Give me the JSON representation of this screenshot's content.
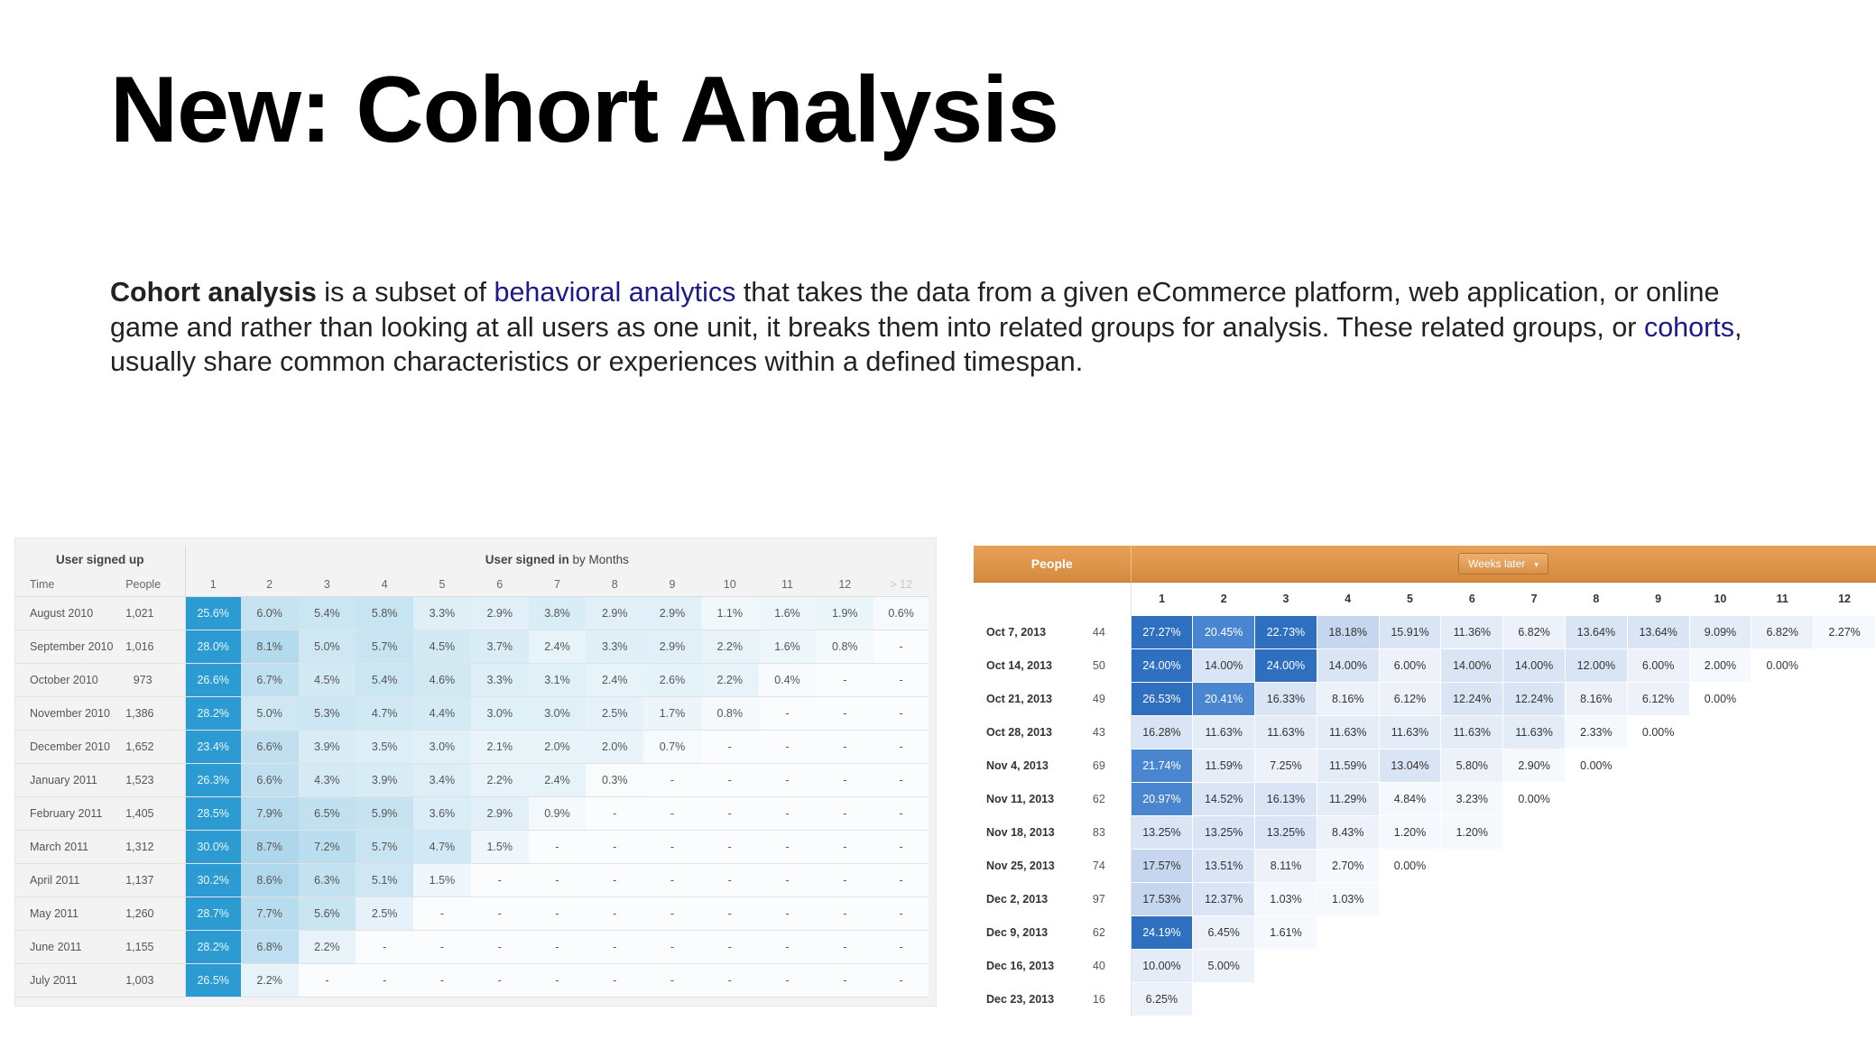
{
  "slide": {
    "title": "New: Cohort Analysis",
    "intro": {
      "term": "Cohort analysis",
      "part1": " is a subset of ",
      "link1": "behavioral analytics",
      "part2": " that takes the data from a given eCommerce platform, web application, or online game and rather than looking at all users as one unit, it breaks them into related groups for analysis. These related groups, or ",
      "link2": "cohorts",
      "part3": ", usually share common characteristics or experiences within a defined timespan."
    }
  },
  "left_table": {
    "header_left": "User signed up",
    "header_right_bold": "User signed in",
    "header_right_rest": " by Months",
    "col_time": "Time",
    "col_people": "People",
    "columns": [
      "1",
      "2",
      "3",
      "4",
      "5",
      "6",
      "7",
      "8",
      "9",
      "10",
      "11",
      "12",
      "> 12"
    ],
    "rows": [
      {
        "label": "August 2010",
        "people": "1,021",
        "values": [
          "25.6%",
          "6.0%",
          "5.4%",
          "5.8%",
          "3.3%",
          "2.9%",
          "3.8%",
          "2.9%",
          "2.9%",
          "1.1%",
          "1.6%",
          "1.9%",
          "0.6%"
        ]
      },
      {
        "label": "September 2010",
        "people": "1,016",
        "values": [
          "28.0%",
          "8.1%",
          "5.0%",
          "5.7%",
          "4.5%",
          "3.7%",
          "2.4%",
          "3.3%",
          "2.9%",
          "2.2%",
          "1.6%",
          "0.8%",
          "-"
        ]
      },
      {
        "label": "October 2010",
        "people": "973",
        "values": [
          "26.6%",
          "6.7%",
          "4.5%",
          "5.4%",
          "4.6%",
          "3.3%",
          "3.1%",
          "2.4%",
          "2.6%",
          "2.2%",
          "0.4%",
          "-",
          "-"
        ]
      },
      {
        "label": "November 2010",
        "people": "1,386",
        "values": [
          "28.2%",
          "5.0%",
          "5.3%",
          "4.7%",
          "4.4%",
          "3.0%",
          "3.0%",
          "2.5%",
          "1.7%",
          "0.8%",
          "-",
          "-",
          "-"
        ]
      },
      {
        "label": "December 2010",
        "people": "1,652",
        "values": [
          "23.4%",
          "6.6%",
          "3.9%",
          "3.5%",
          "3.0%",
          "2.1%",
          "2.0%",
          "2.0%",
          "0.7%",
          "-",
          "-",
          "-",
          "-"
        ]
      },
      {
        "label": "January 2011",
        "people": "1,523",
        "values": [
          "26.3%",
          "6.6%",
          "4.3%",
          "3.9%",
          "3.4%",
          "2.2%",
          "2.4%",
          "0.3%",
          "-",
          "-",
          "-",
          "-",
          "-"
        ]
      },
      {
        "label": "February 2011",
        "people": "1,405",
        "values": [
          "28.5%",
          "7.9%",
          "6.5%",
          "5.9%",
          "3.6%",
          "2.9%",
          "0.9%",
          "-",
          "-",
          "-",
          "-",
          "-",
          "-"
        ]
      },
      {
        "label": "March 2011",
        "people": "1,312",
        "values": [
          "30.0%",
          "8.7%",
          "7.2%",
          "5.7%",
          "4.7%",
          "1.5%",
          "-",
          "-",
          "-",
          "-",
          "-",
          "-",
          "-"
        ]
      },
      {
        "label": "April 2011",
        "people": "1,137",
        "values": [
          "30.2%",
          "8.6%",
          "6.3%",
          "5.1%",
          "1.5%",
          "-",
          "-",
          "-",
          "-",
          "-",
          "-",
          "-",
          "-"
        ]
      },
      {
        "label": "May 2011",
        "people": "1,260",
        "values": [
          "28.7%",
          "7.7%",
          "5.6%",
          "2.5%",
          "-",
          "-",
          "-",
          "-",
          "-",
          "-",
          "-",
          "-",
          "-"
        ]
      },
      {
        "label": "June 2011",
        "people": "1,155",
        "values": [
          "28.2%",
          "6.8%",
          "2.2%",
          "-",
          "-",
          "-",
          "-",
          "-",
          "-",
          "-",
          "-",
          "-",
          "-"
        ]
      },
      {
        "label": "July 2011",
        "people": "1,003",
        "values": [
          "26.5%",
          "2.2%",
          "-",
          "-",
          "-",
          "-",
          "-",
          "-",
          "-",
          "-",
          "-",
          "-",
          "-"
        ]
      }
    ]
  },
  "right_table": {
    "header_people": "People",
    "dropdown_label": "Weeks later",
    "dropdown_caret": "▾",
    "columns": [
      "1",
      "2",
      "3",
      "4",
      "5",
      "6",
      "7",
      "8",
      "9",
      "10",
      "11",
      "12"
    ],
    "rows": [
      {
        "label": "Oct 7, 2013",
        "people": "44",
        "values": [
          "27.27%",
          "20.45%",
          "22.73%",
          "18.18%",
          "15.91%",
          "11.36%",
          "6.82%",
          "13.64%",
          "13.64%",
          "9.09%",
          "6.82%",
          "2.27%"
        ]
      },
      {
        "label": "Oct 14, 2013",
        "people": "50",
        "values": [
          "24.00%",
          "14.00%",
          "24.00%",
          "14.00%",
          "6.00%",
          "14.00%",
          "14.00%",
          "12.00%",
          "6.00%",
          "2.00%",
          "0.00%"
        ]
      },
      {
        "label": "Oct 21, 2013",
        "people": "49",
        "values": [
          "26.53%",
          "20.41%",
          "16.33%",
          "8.16%",
          "6.12%",
          "12.24%",
          "12.24%",
          "8.16%",
          "6.12%",
          "0.00%"
        ]
      },
      {
        "label": "Oct 28, 2013",
        "people": "43",
        "values": [
          "16.28%",
          "11.63%",
          "11.63%",
          "11.63%",
          "11.63%",
          "11.63%",
          "11.63%",
          "2.33%",
          "0.00%"
        ]
      },
      {
        "label": "Nov 4, 2013",
        "people": "69",
        "values": [
          "21.74%",
          "11.59%",
          "7.25%",
          "11.59%",
          "13.04%",
          "5.80%",
          "2.90%",
          "0.00%"
        ]
      },
      {
        "label": "Nov 11, 2013",
        "people": "62",
        "values": [
          "20.97%",
          "14.52%",
          "16.13%",
          "11.29%",
          "4.84%",
          "3.23%",
          "0.00%"
        ]
      },
      {
        "label": "Nov 18, 2013",
        "people": "83",
        "values": [
          "13.25%",
          "13.25%",
          "13.25%",
          "8.43%",
          "1.20%",
          "1.20%"
        ]
      },
      {
        "label": "Nov 25, 2013",
        "people": "74",
        "values": [
          "17.57%",
          "13.51%",
          "8.11%",
          "2.70%",
          "0.00%"
        ]
      },
      {
        "label": "Dec 2, 2013",
        "people": "97",
        "values": [
          "17.53%",
          "12.37%",
          "1.03%",
          "1.03%"
        ]
      },
      {
        "label": "Dec 9, 2013",
        "people": "62",
        "values": [
          "24.19%",
          "6.45%",
          "1.61%"
        ]
      },
      {
        "label": "Dec 16, 2013",
        "people": "40",
        "values": [
          "10.00%",
          "5.00%"
        ]
      },
      {
        "label": "Dec 23, 2013",
        "people": "16",
        "values": [
          "6.25%"
        ]
      }
    ]
  }
}
